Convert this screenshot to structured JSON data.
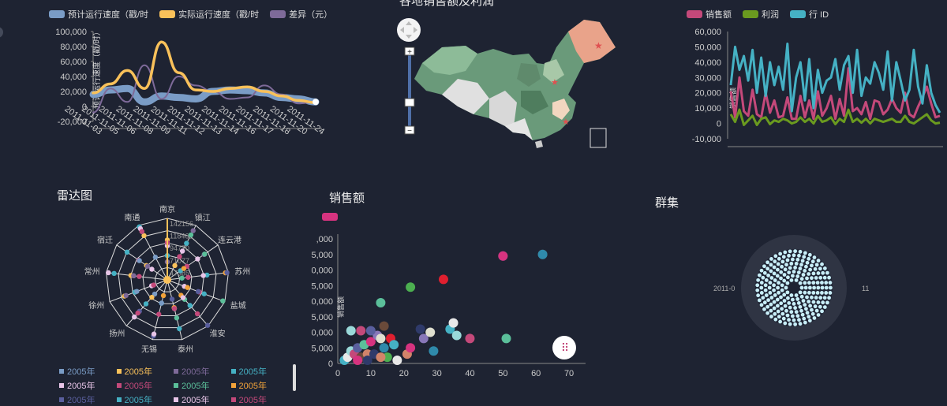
{
  "colors": {
    "bg": "#1e2332",
    "speed_plan": "#7a9cc6",
    "speed_actual": "#f9c15a",
    "diff": "#7e6a99",
    "sales": "#c4497a",
    "profit": "#6a9a1f",
    "rowid": "#45b1c4"
  },
  "line_panel": {
    "legend": [
      "预计运行速度（戳/时",
      "实际运行速度（戳/时",
      "差异（元）"
    ],
    "y_axis_title": "预计运行速度（戳/时）",
    "y_ticks": [
      "100,000",
      "80,000",
      "60,000",
      "40,000",
      "20,000",
      "0",
      "-20,000"
    ],
    "x_ticks": [
      "2011-11-03",
      "2011-11-05",
      "2011-11-06",
      "2011-11-08",
      "2011-11-09",
      "2011-11-11",
      "2011-11-12",
      "2011-11-13",
      "2011-11-14",
      "2011-11-16",
      "2011-11-17",
      "2011-11-18",
      "2011-11-20",
      "2011-11-24"
    ]
  },
  "map_panel": {
    "title": "各地销售额及利润",
    "zoom_plus": "+",
    "zoom_minus": "−"
  },
  "area_panel": {
    "legend": [
      "销售额",
      "利润",
      "行 ID"
    ],
    "y_axis_title": "销售额",
    "y_ticks": [
      "60,000",
      "50,000",
      "40,000",
      "30,000",
      "20,000",
      "10,000",
      "0",
      "-10,000"
    ]
  },
  "radar_panel": {
    "title": "雷达图",
    "axes": [
      "南京",
      "镇江",
      "连云港",
      "苏州",
      "盐城",
      "淮安",
      "泰州",
      "无锡",
      "扬州",
      "徐州",
      "常州",
      "宿迁",
      "南通"
    ],
    "ring_values": [
      "142156",
      "118462",
      "94770",
      "71077",
      "47385"
    ],
    "legend": [
      {
        "label": "2005年",
        "color": "#7a9cc6"
      },
      {
        "label": "2005年",
        "color": "#f9c15a"
      },
      {
        "label": "2005年",
        "color": "#7e6a99"
      },
      {
        "label": "2005年",
        "color": "#45b1c4"
      },
      {
        "label": "2005年",
        "color": "#e8c5e8"
      },
      {
        "label": "2005年",
        "color": "#c4497a"
      },
      {
        "label": "2005年",
        "color": "#5bbf9a"
      },
      {
        "label": "2005年",
        "color": "#f2a33a"
      },
      {
        "label": "2005年",
        "color": "#5a5f9e"
      },
      {
        "label": "2005年",
        "color": "#45b1c4"
      },
      {
        "label": "2005年",
        "color": "#e8c5e8"
      },
      {
        "label": "2005年",
        "color": "#c4497a"
      }
    ]
  },
  "scatter_panel": {
    "title": "销售额",
    "y_axis_title": "销售额",
    "y_ticks": [
      ",000",
      "5,000",
      "0,000",
      "5,000",
      "0,000",
      "5,000",
      "0,000",
      "5,000",
      "0"
    ],
    "x_ticks": [
      "0",
      "10",
      "20",
      "30",
      "40",
      "50",
      "60",
      "70"
    ]
  },
  "cluster_panel": {
    "title": "群集",
    "label_left": "2011-0",
    "label_right": "11"
  },
  "chart_data": [
    {
      "type": "line",
      "title": "",
      "series": [
        {
          "name": "预计运行速度（戳/时",
          "values": [
            16000,
            22000,
            24000,
            6000,
            14000,
            12000,
            10000,
            20000,
            22000,
            21000,
            18000,
            12000,
            10000,
            6000
          ]
        },
        {
          "name": "实际运行速度（戳/时",
          "values": [
            18000,
            30000,
            48000,
            24000,
            86000,
            45000,
            22000,
            20000,
            24000,
            26000,
            20000,
            14000,
            8000,
            5000
          ]
        },
        {
          "name": "差异（元）",
          "values": [
            -8000,
            24000,
            6000,
            55000,
            10000,
            40000,
            28000,
            20000,
            10000,
            12000,
            28000,
            16000,
            4000,
            6000
          ]
        }
      ],
      "categories": [
        "2011-11-03",
        "2011-11-05",
        "2011-11-06",
        "2011-11-08",
        "2011-11-09",
        "2011-11-11",
        "2011-11-12",
        "2011-11-13",
        "2011-11-14",
        "2011-11-16",
        "2011-11-17",
        "2011-11-18",
        "2011-11-20",
        "2011-11-24"
      ],
      "ylim": [
        -20000,
        100000
      ]
    },
    {
      "type": "line",
      "title": "",
      "series": [
        {
          "name": "销售额",
          "values": [
            21000,
            4000,
            30000,
            8000,
            5000,
            22000,
            6000,
            4000,
            20000,
            7000,
            15000,
            4000,
            5000,
            17000,
            3000,
            3000,
            18000,
            4000,
            15000,
            3000,
            21000,
            5000,
            10000,
            18000,
            3000,
            16000,
            5000,
            36000,
            8000,
            10000,
            6000,
            14000,
            3000,
            15000,
            14000,
            6000,
            9000,
            16000,
            10000,
            7000,
            20000,
            6000,
            4000,
            11000,
            17000,
            24000,
            13000,
            4000,
            5000
          ]
        },
        {
          "name": "利润",
          "values": [
            6000,
            1000,
            9000,
            -1000,
            2000,
            5000,
            -1000,
            3000,
            4000,
            -500,
            2000,
            1000,
            3000,
            2000,
            0,
            1000,
            4000,
            1000,
            3000,
            0,
            5000,
            1000,
            2000,
            4000,
            -500,
            3000,
            1000,
            9000,
            1000,
            3000,
            500,
            3000,
            0,
            3000,
            2000,
            1000,
            2000,
            3000,
            1000,
            1000,
            5000,
            1000,
            0,
            2000,
            4000,
            6000,
            2000,
            0,
            500
          ]
        },
        {
          "name": "行 ID",
          "values": [
            25000,
            50000,
            35000,
            44000,
            28000,
            48000,
            20000,
            43000,
            18000,
            40000,
            25000,
            37000,
            22000,
            52000,
            8000,
            30000,
            40000,
            15000,
            42000,
            10000,
            35000,
            20000,
            28000,
            30000,
            42000,
            22000,
            38000,
            44000,
            20000,
            48000,
            18000,
            30000,
            26000,
            40000,
            33000,
            22000,
            47000,
            15000,
            40000,
            28000,
            15000,
            22000,
            48000,
            24000,
            13000,
            38000,
            20000,
            12000,
            7000
          ]
        }
      ],
      "ylim": [
        -10000,
        60000
      ]
    },
    {
      "type": "scatter",
      "title": "销售额",
      "points": [
        [
          2,
          1000
        ],
        [
          3,
          2000
        ],
        [
          4,
          4000
        ],
        [
          5,
          3000
        ],
        [
          6,
          5000
        ],
        [
          7,
          2000
        ],
        [
          8,
          6000
        ],
        [
          9,
          3000
        ],
        [
          10,
          7000
        ],
        [
          11,
          3000
        ],
        [
          12,
          9000
        ],
        [
          13,
          8000
        ],
        [
          14,
          5000
        ],
        [
          15,
          2000
        ],
        [
          16,
          8000
        ],
        [
          17,
          6000
        ],
        [
          18,
          1000
        ],
        [
          4,
          10500
        ],
        [
          7,
          10500
        ],
        [
          10,
          10500
        ],
        [
          14,
          12000
        ],
        [
          13,
          19500
        ],
        [
          21,
          3000
        ],
        [
          22,
          5000
        ],
        [
          25,
          11000
        ],
        [
          26,
          8000
        ],
        [
          28,
          10000
        ],
        [
          29,
          4000
        ],
        [
          22,
          24500
        ],
        [
          32,
          27000
        ],
        [
          34,
          11000
        ],
        [
          35,
          13000
        ],
        [
          36,
          9000
        ],
        [
          40,
          8000
        ],
        [
          50,
          34500
        ],
        [
          62,
          35000
        ],
        [
          51,
          8000
        ],
        [
          13,
          2000
        ],
        [
          6,
          1000
        ],
        [
          9,
          1000
        ]
      ],
      "xlim": [
        0,
        75
      ],
      "ylim": [
        0,
        40000
      ]
    }
  ]
}
